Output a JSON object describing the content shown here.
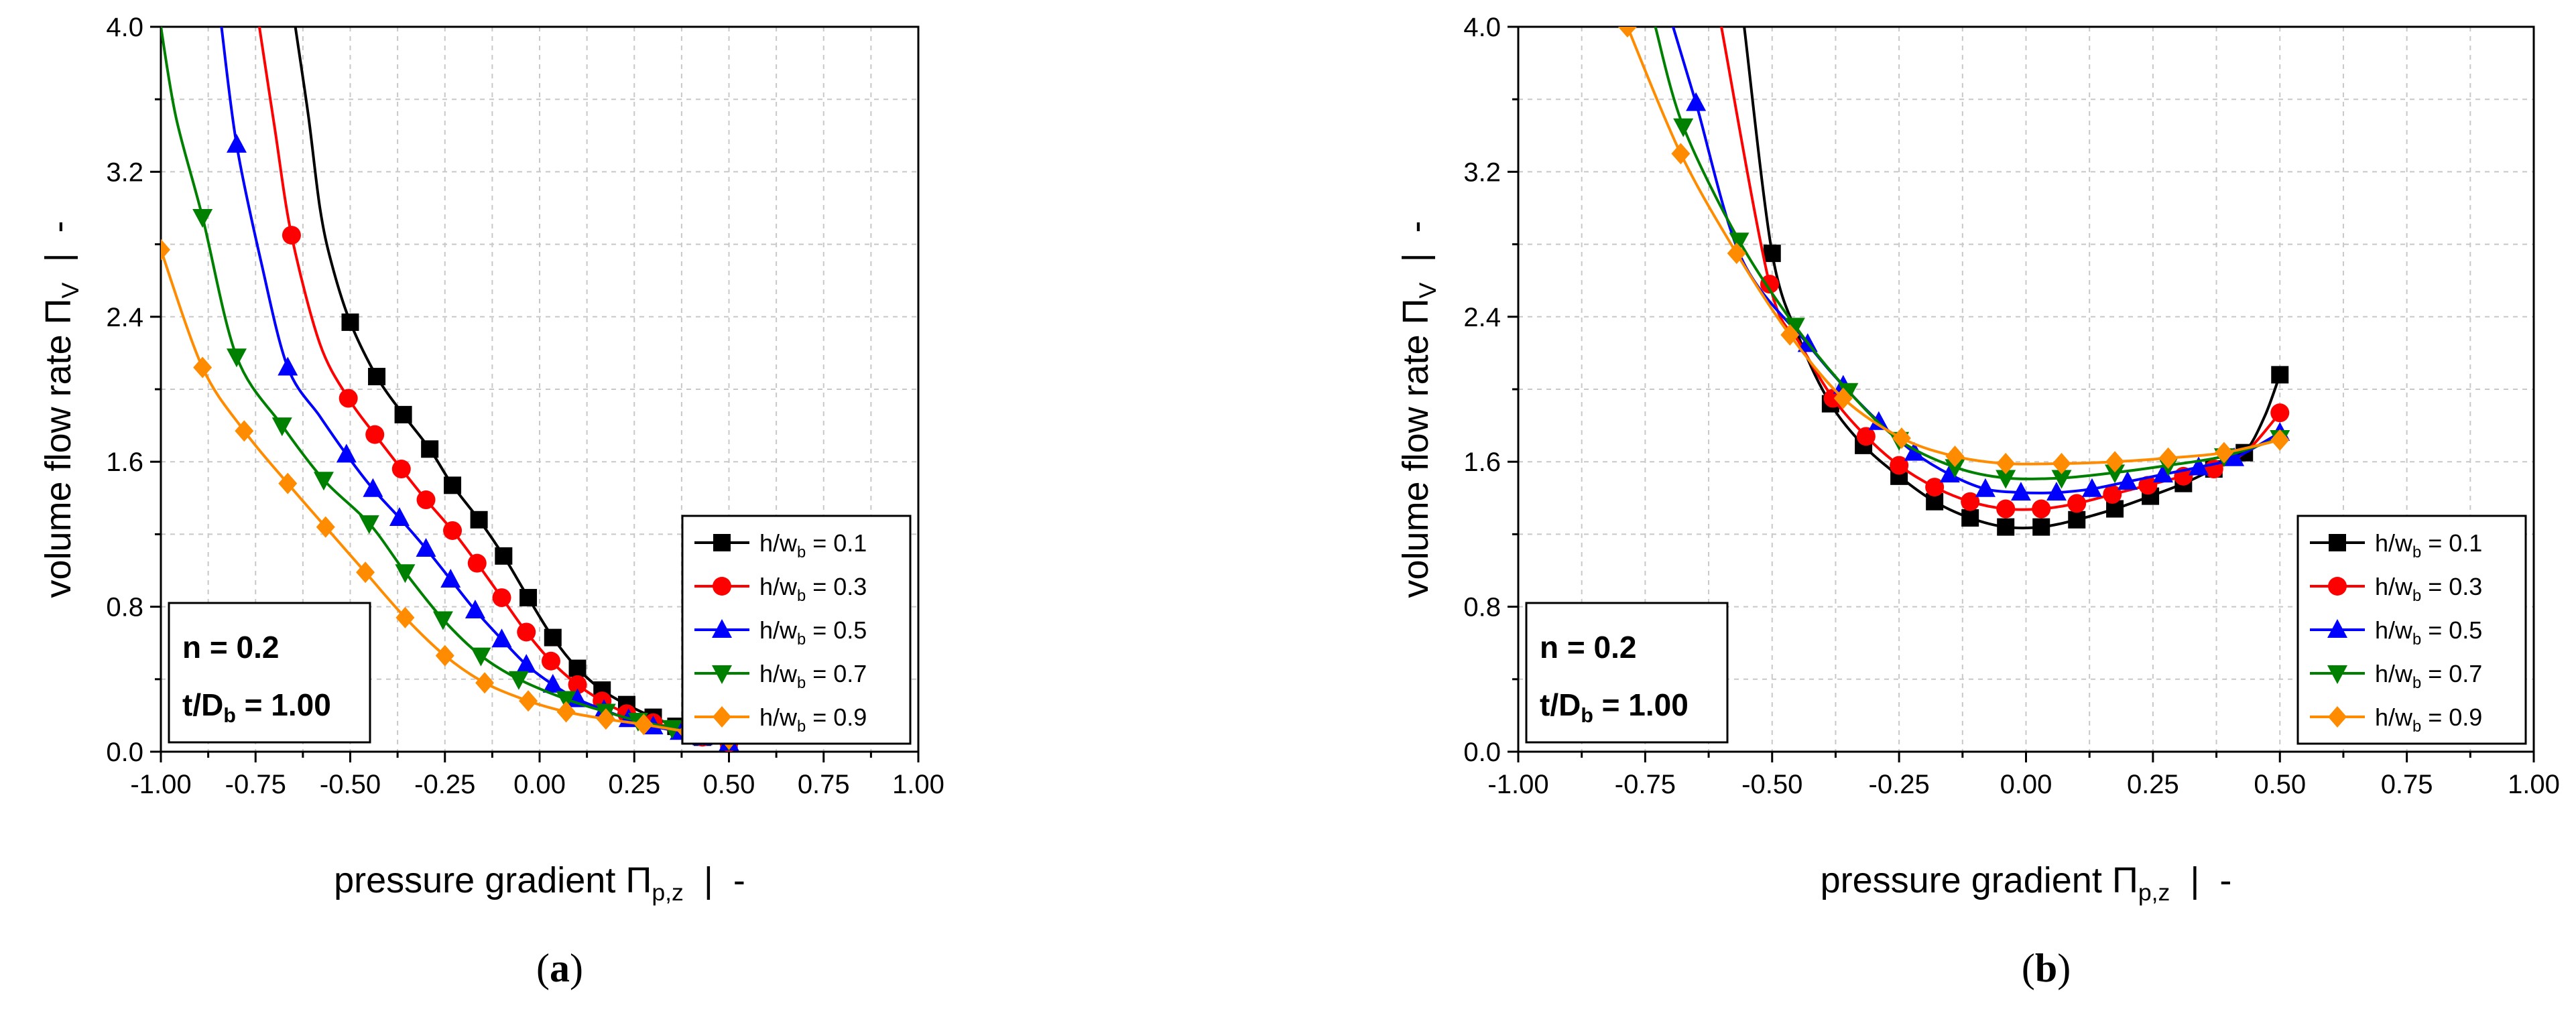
{
  "chart_data": [
    {
      "type": "line",
      "panel_label_prefix": "(",
      "panel_letter": "a",
      "panel_label_suffix": ")",
      "xlabel": "pressure gradient Π",
      "xlabel_sub": "p,z",
      "xlabel_tail": "  |  -",
      "ylabel": "volume flow rate Π",
      "ylabel_sub": "V",
      "ylabel_tail": "  |  -",
      "xlim": [
        -1.0,
        1.0
      ],
      "ylim": [
        0.0,
        4.0
      ],
      "xticks": [
        "-1.00",
        "-0.75",
        "-0.50",
        "-0.25",
        "0.00",
        "0.25",
        "0.50",
        "0.75",
        "1.00"
      ],
      "yticks": [
        "0.0",
        "0.8",
        "1.6",
        "2.4",
        "3.2",
        "4.0"
      ],
      "grid": true,
      "legend_position": "right-lower",
      "annotation": {
        "line1": "n = 0.2",
        "line2_main": "t/D",
        "line2_sub": "b",
        "line2_tail": " = 1.00"
      },
      "series": [
        {
          "name_main": "h/w",
          "name_sub": "b",
          "name_tail": " = 0.1",
          "color": "#000000",
          "marker": "square",
          "x": [
            -0.645,
            -0.61,
            -0.58,
            -0.55,
            -0.5,
            -0.43,
            -0.36,
            -0.29,
            -0.23,
            -0.16,
            -0.095,
            -0.03,
            0.035,
            0.1,
            0.165,
            0.23,
            0.3,
            0.36,
            0.43,
            0.5
          ],
          "y": [
            4.0,
            3.5,
            3.0,
            2.7,
            2.37,
            2.07,
            1.86,
            1.67,
            1.47,
            1.28,
            1.08,
            0.85,
            0.63,
            0.46,
            0.34,
            0.26,
            0.19,
            0.14,
            0.08,
            0.04
          ],
          "marked": [
            4,
            5,
            6,
            7,
            8,
            9,
            10,
            11,
            12,
            13,
            14,
            15,
            16,
            17,
            18,
            19
          ]
        },
        {
          "name_main": "h/w",
          "name_sub": "b",
          "name_tail": " = 0.3",
          "color": "#ff0000",
          "marker": "circle",
          "x": [
            -0.74,
            -0.7,
            -0.655,
            -0.58,
            -0.505,
            -0.435,
            -0.365,
            -0.3,
            -0.23,
            -0.165,
            -0.1,
            -0.035,
            0.03,
            0.1,
            0.165,
            0.23,
            0.3,
            0.37,
            0.43,
            0.5
          ],
          "y": [
            4.0,
            3.45,
            2.85,
            2.25,
            1.95,
            1.75,
            1.56,
            1.39,
            1.22,
            1.04,
            0.85,
            0.66,
            0.5,
            0.37,
            0.28,
            0.21,
            0.16,
            0.12,
            0.08,
            0.05
          ],
          "marked": [
            2,
            4,
            5,
            6,
            7,
            8,
            9,
            10,
            11,
            12,
            13,
            14,
            15,
            16,
            17,
            18,
            19
          ]
        },
        {
          "name_main": "h/w",
          "name_sub": "b",
          "name_tail": " = 0.5",
          "color": "#0000ff",
          "marker": "triangle-up",
          "x": [
            -0.84,
            -0.8,
            -0.735,
            -0.665,
            -0.58,
            -0.51,
            -0.44,
            -0.37,
            -0.3,
            -0.235,
            -0.17,
            -0.1,
            -0.035,
            0.035,
            0.1,
            0.17,
            0.235,
            0.3,
            0.37,
            0.43,
            0.5
          ],
          "y": [
            4.0,
            3.35,
            2.7,
            2.12,
            1.85,
            1.64,
            1.45,
            1.29,
            1.12,
            0.95,
            0.78,
            0.62,
            0.48,
            0.37,
            0.29,
            0.23,
            0.18,
            0.14,
            0.11,
            0.08,
            0.05
          ],
          "marked": [
            1,
            3,
            5,
            6,
            7,
            8,
            9,
            10,
            11,
            12,
            13,
            14,
            15,
            16,
            17,
            18,
            19,
            20
          ]
        },
        {
          "name_main": "h/w",
          "name_sub": "b",
          "name_tail": " = 0.7",
          "color": "#008000",
          "marker": "triangle-down",
          "x": [
            -1.0,
            -0.96,
            -0.89,
            -0.8,
            -0.68,
            -0.57,
            -0.45,
            -0.355,
            -0.255,
            -0.155,
            -0.055,
            0.07,
            0.175,
            0.26,
            0.35,
            0.43,
            0.5
          ],
          "y": [
            4.0,
            3.5,
            2.95,
            2.18,
            1.8,
            1.5,
            1.26,
            0.99,
            0.73,
            0.53,
            0.4,
            0.29,
            0.22,
            0.17,
            0.13,
            0.09,
            0.06
          ],
          "marked": [
            2,
            3,
            4,
            5,
            6,
            7,
            8,
            9,
            10,
            11,
            12,
            13,
            14,
            15,
            16
          ]
        },
        {
          "name_main": "h/w",
          "name_sub": "b",
          "name_tail": " = 0.9",
          "color": "#ff8c00",
          "marker": "diamond",
          "x": [
            -1.0,
            -0.89,
            -0.78,
            -0.665,
            -0.565,
            -0.46,
            -0.355,
            -0.25,
            -0.145,
            -0.03,
            0.07,
            0.175,
            0.275,
            0.39,
            0.5
          ],
          "y": [
            2.77,
            2.12,
            1.77,
            1.48,
            1.24,
            0.99,
            0.74,
            0.53,
            0.38,
            0.28,
            0.22,
            0.18,
            0.15,
            0.11,
            0.07
          ],
          "marked": [
            0,
            1,
            2,
            3,
            4,
            5,
            6,
            7,
            8,
            9,
            10,
            11,
            12,
            13,
            14
          ]
        }
      ]
    },
    {
      "type": "line",
      "panel_label_prefix": "(",
      "panel_letter": "b",
      "panel_label_suffix": ")",
      "xlabel": "pressure gradient Π",
      "xlabel_sub": "p,z",
      "xlabel_tail": "  |  -",
      "ylabel": "volume flow rate Π",
      "ylabel_sub": "V",
      "ylabel_tail": "  |  -",
      "xlim": [
        -1.0,
        1.0
      ],
      "ylim": [
        0.0,
        4.0
      ],
      "xticks": [
        "-1.00",
        "-0.75",
        "-0.50",
        "-0.25",
        "0.00",
        "0.25",
        "0.50",
        "0.75",
        "1.00"
      ],
      "yticks": [
        "0.0",
        "0.8",
        "1.6",
        "2.4",
        "3.2",
        "4.0"
      ],
      "grid": true,
      "legend_position": "right-lower",
      "annotation": {
        "line1": "n = 0.2",
        "line2_main": "t/D",
        "line2_sub": "b",
        "line2_tail": " = 1.00"
      },
      "series": [
        {
          "name_main": "h/w",
          "name_sub": "b",
          "name_tail": " = 0.1",
          "color": "#000000",
          "marker": "square",
          "x": [
            -0.555,
            -0.5,
            -0.445,
            -0.385,
            -0.32,
            -0.25,
            -0.18,
            -0.11,
            -0.04,
            0.03,
            0.1,
            0.175,
            0.245,
            0.31,
            0.37,
            0.43,
            0.47,
            0.5
          ],
          "y": [
            4.0,
            2.75,
            2.27,
            1.92,
            1.69,
            1.52,
            1.38,
            1.29,
            1.24,
            1.24,
            1.28,
            1.34,
            1.41,
            1.48,
            1.56,
            1.65,
            1.85,
            2.08
          ],
          "marked": [
            1,
            3,
            4,
            5,
            6,
            7,
            8,
            9,
            10,
            11,
            12,
            13,
            14,
            15,
            17
          ]
        },
        {
          "name_main": "h/w",
          "name_sub": "b",
          "name_tail": " = 0.3",
          "color": "#ff0000",
          "marker": "circle",
          "x": [
            -0.6,
            -0.505,
            -0.445,
            -0.38,
            -0.315,
            -0.25,
            -0.18,
            -0.11,
            -0.04,
            0.03,
            0.1,
            0.17,
            0.24,
            0.31,
            0.37,
            0.435,
            0.5
          ],
          "y": [
            4.0,
            2.58,
            2.25,
            1.95,
            1.74,
            1.58,
            1.46,
            1.38,
            1.34,
            1.34,
            1.37,
            1.42,
            1.47,
            1.52,
            1.56,
            1.66,
            1.87
          ],
          "marked": [
            1,
            3,
            4,
            5,
            6,
            7,
            8,
            9,
            10,
            11,
            12,
            13,
            14,
            16
          ]
        },
        {
          "name_main": "h/w",
          "name_sub": "b",
          "name_tail": " = 0.5",
          "color": "#0000ff",
          "marker": "triangle-up",
          "x": [
            -0.695,
            -0.65,
            -0.56,
            -0.43,
            -0.36,
            -0.29,
            -0.22,
            -0.15,
            -0.08,
            -0.01,
            0.06,
            0.13,
            0.2,
            0.27,
            0.34,
            0.41,
            0.5
          ],
          "y": [
            4.0,
            3.58,
            2.72,
            2.25,
            2.02,
            1.82,
            1.65,
            1.53,
            1.45,
            1.43,
            1.43,
            1.45,
            1.49,
            1.53,
            1.57,
            1.62,
            1.76
          ],
          "marked": [
            1,
            3,
            4,
            5,
            6,
            7,
            8,
            9,
            10,
            11,
            12,
            13,
            14,
            15,
            16
          ]
        },
        {
          "name_main": "h/w",
          "name_sub": "b",
          "name_tail": " = 0.7",
          "color": "#008000",
          "marker": "triangle-down",
          "x": [
            -0.73,
            -0.675,
            -0.565,
            -0.455,
            -0.35,
            -0.25,
            -0.14,
            -0.04,
            0.07,
            0.175,
            0.28,
            0.39,
            0.5
          ],
          "y": [
            4.0,
            3.45,
            2.82,
            2.35,
            1.99,
            1.72,
            1.57,
            1.51,
            1.51,
            1.54,
            1.58,
            1.63,
            1.73
          ],
          "marked": [
            1,
            2,
            3,
            4,
            5,
            6,
            7,
            8,
            9,
            10,
            11,
            12
          ]
        },
        {
          "name_main": "h/w",
          "name_sub": "b",
          "name_tail": " = 0.9",
          "color": "#ff8c00",
          "marker": "diamond",
          "x": [
            -0.785,
            -0.68,
            -0.57,
            -0.465,
            -0.36,
            -0.245,
            -0.14,
            -0.04,
            0.07,
            0.175,
            0.28,
            0.39,
            0.5
          ],
          "y": [
            4.0,
            3.3,
            2.75,
            2.3,
            1.95,
            1.73,
            1.63,
            1.59,
            1.59,
            1.6,
            1.62,
            1.65,
            1.72
          ],
          "marked": [
            0,
            1,
            2,
            3,
            4,
            5,
            6,
            7,
            8,
            9,
            10,
            11,
            12
          ]
        }
      ]
    }
  ]
}
